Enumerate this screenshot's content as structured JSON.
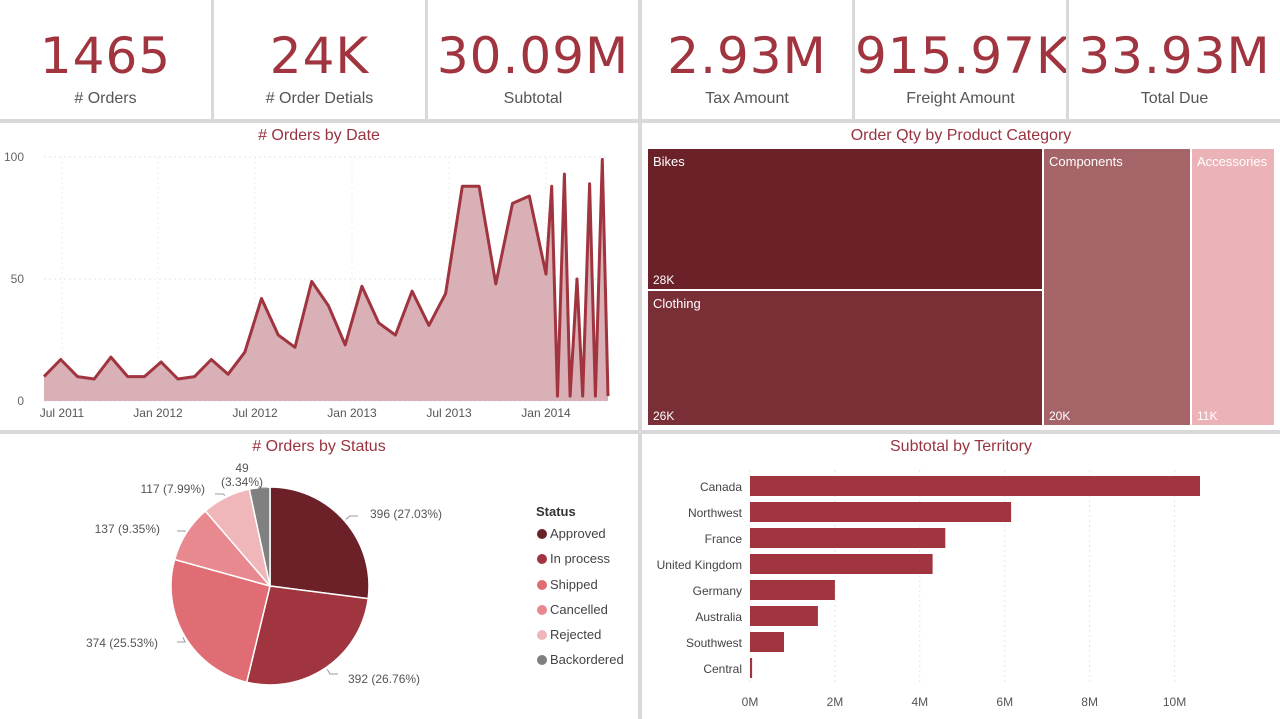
{
  "kpis": [
    {
      "value": "1465",
      "label": "# Orders"
    },
    {
      "value": "24K",
      "label": "# Order Detials"
    },
    {
      "value": "30.09M",
      "label": "Subtotal"
    },
    {
      "value": "2.93M",
      "label": "Tax Amount"
    },
    {
      "value": "915.97K",
      "label": "Freight Amount"
    },
    {
      "value": "33.93M",
      "label": "Total Due"
    }
  ],
  "colors": {
    "accent": "#a0343f",
    "title": "#9a3340",
    "area_fill": "#d8b0b5",
    "line": "#a0343f",
    "bar": "#a0343f"
  },
  "visuals": {
    "orders_by_date_title": "# Orders by Date",
    "category_title": "Order Qty by Product Category",
    "status_title": "# Orders by Status",
    "territory_title": "Subtotal by Territory",
    "status_legend_title": "Status"
  },
  "chart_data": [
    {
      "type": "area",
      "title": "# Orders by Date",
      "x_tick_labels": [
        "Jul 2011",
        "Jan 2012",
        "Jul 2012",
        "Jan 2013",
        "Jul 2013",
        "Jan 2014"
      ],
      "y_ticks": [
        0,
        50,
        100
      ],
      "ylim": [
        0,
        100
      ],
      "x": [
        "2011-06",
        "2011-07",
        "2011-08",
        "2011-09",
        "2011-10",
        "2011-11",
        "2011-12",
        "2012-01",
        "2012-02",
        "2012-03",
        "2012-04",
        "2012-05",
        "2012-06",
        "2012-07",
        "2012-08",
        "2012-09",
        "2012-10",
        "2012-11",
        "2012-12",
        "2013-01",
        "2013-02",
        "2013-03",
        "2013-04",
        "2013-05",
        "2013-06",
        "2013-07",
        "2013-08",
        "2013-09",
        "2013-10",
        "2013-11",
        "2013-12",
        "2014-01",
        "2014-01b",
        "2014-02",
        "2014-02b",
        "2014-03",
        "2014-03b",
        "2014-04",
        "2014-04b",
        "2014-05",
        "2014-05b"
      ],
      "values": [
        10,
        17,
        10,
        9,
        18,
        10,
        10,
        16,
        9,
        10,
        17,
        11,
        20,
        42,
        27,
        22,
        49,
        39,
        23,
        47,
        32,
        27,
        45,
        31,
        44,
        88,
        88,
        48,
        81,
        84,
        52,
        88,
        2,
        93,
        2,
        50,
        2,
        89,
        2,
        99,
        2
      ],
      "grid": true
    },
    {
      "type": "treemap",
      "title": "Order Qty by Product Category",
      "categories": [
        "Bikes",
        "Clothing",
        "Components",
        "Accessories"
      ],
      "value_labels": [
        "28K",
        "26K",
        "20K",
        "11K"
      ],
      "values": [
        28000,
        26000,
        20000,
        11000
      ],
      "colors": [
        "#6b2127",
        "#7a2e36",
        "#a46468",
        "#ebb3b7"
      ]
    },
    {
      "type": "pie",
      "title": "# Orders by Status",
      "legend_title": "Status",
      "legend_placement": "right",
      "categories": [
        "Approved",
        "In process",
        "Shipped",
        "Cancelled",
        "Rejected",
        "Backordered"
      ],
      "values": [
        396,
        392,
        374,
        137,
        117,
        49
      ],
      "labels": [
        "396 (27.03%)",
        "392 (26.76%)",
        "374 (25.53%)",
        "137 (9.35%)",
        "117 (7.99%)",
        "49\n(3.34%)"
      ],
      "colors": [
        "#6b2127",
        "#a0343f",
        "#e06c74",
        "#e8898f",
        "#f0b7bb",
        "#808080"
      ]
    },
    {
      "type": "bar",
      "orientation": "horizontal",
      "title": "Subtotal by Territory",
      "categories": [
        "Canada",
        "Northwest",
        "France",
        "United Kingdom",
        "Germany",
        "Australia",
        "Southwest",
        "Central"
      ],
      "values": [
        10.6,
        6.15,
        4.6,
        4.3,
        2.0,
        1.6,
        0.8,
        0.05
      ],
      "x_tick_labels": [
        "0M",
        "2M",
        "4M",
        "6M",
        "8M",
        "10M"
      ],
      "xlim": [
        0,
        11
      ],
      "grid": true
    }
  ]
}
